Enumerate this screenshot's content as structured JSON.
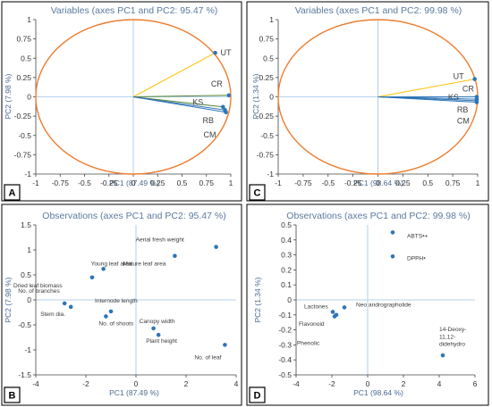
{
  "colors": {
    "circle": "#ed7d31",
    "ut_arrow": "#ffc000",
    "green_arrows": "#548235",
    "blue_arrows": "#2e75b6",
    "point": "#2e75b6",
    "zero_line": "#9dc3e6",
    "panel_border": "#000000"
  },
  "chart_data": [
    {
      "panel": "A",
      "type": "scatter",
      "subtype": "correlation-circle",
      "title": "Variables (axes PC1 and PC2: 95.47 %)",
      "xlabel": "PC1 (87.49 %)",
      "ylabel": "PC2 (7.98 %)",
      "xlim": [
        -1,
        1
      ],
      "ylim": [
        -1,
        1
      ],
      "xticks": [
        "-1",
        "-0.75",
        "-0.5",
        "-0.25",
        "0",
        "0.25",
        "0.5",
        "0.75",
        "1"
      ],
      "yticks": [
        "1",
        "0.75",
        "0.5",
        "0.25",
        "0",
        "-0.25",
        "-0.5",
        "-0.75",
        "-1"
      ],
      "grid": false,
      "points": [
        {
          "label": "UT",
          "x": 0.84,
          "y": 0.57
        },
        {
          "label": "CR",
          "x": 0.98,
          "y": 0.02
        },
        {
          "label": "KS",
          "x": 0.92,
          "y": -0.13
        },
        {
          "label": "RB",
          "x": 0.94,
          "y": -0.17
        },
        {
          "label": "CM",
          "x": 0.95,
          "y": -0.2
        }
      ]
    },
    {
      "panel": "C",
      "type": "scatter",
      "subtype": "correlation-circle",
      "title": "Variables (axes PC1 and PC2: 99.98 %)",
      "xlabel": "PC1 (98.64 %)",
      "ylabel": "PC2 (1.34 %)",
      "xlim": [
        -1,
        1
      ],
      "ylim": [
        -1,
        1
      ],
      "xticks": [
        "-1",
        "-0.75",
        "-0.5",
        "-0.25",
        "0",
        "0.25",
        "0.5",
        "0.75",
        "1"
      ],
      "yticks": [
        "1",
        "0.75",
        "0.5",
        "0.25",
        "0",
        "-0.25",
        "-0.5",
        "-0.75",
        "-1"
      ],
      "grid": false,
      "points": [
        {
          "label": "UT",
          "x": 0.97,
          "y": 0.23
        },
        {
          "label": "CR",
          "x": 0.99,
          "y": 0.0
        },
        {
          "label": "KS",
          "x": 0.99,
          "y": -0.03
        },
        {
          "label": "RB",
          "x": 0.99,
          "y": -0.05
        },
        {
          "label": "CM",
          "x": 0.99,
          "y": -0.07
        }
      ]
    },
    {
      "panel": "B",
      "type": "scatter",
      "title": "Observations (axes PC1 and PC2: 95.47 %)",
      "xlabel": "PC1 (87.49 %)",
      "ylabel": "PC2 (7.98 %)",
      "xlim": [
        -4,
        4
      ],
      "ylim": [
        -1.5,
        1.5
      ],
      "xticks": [
        "-4",
        "-2",
        "0",
        "2",
        "4"
      ],
      "yticks": [
        "1.5",
        "1",
        "0.5",
        "0",
        "-0.5",
        "-1",
        "-1.5"
      ],
      "grid": false,
      "points": [
        {
          "label": "Aerial fresh weight",
          "x": 3.2,
          "y": 1.06
        },
        {
          "label": "Mature leaf area",
          "x": 1.55,
          "y": 0.88
        },
        {
          "label": "Young leaf area",
          "x": -1.3,
          "y": 0.62
        },
        {
          "label": "Dried leaf biomass",
          "x": -1.75,
          "y": 0.45
        },
        {
          "label": "No. of branches",
          "x": -2.85,
          "y": -0.07
        },
        {
          "label": "Internode length",
          "x": -1.0,
          "y": -0.23
        },
        {
          "label": "Stem dia.",
          "x": -2.6,
          "y": -0.14
        },
        {
          "label": "No. of shoots",
          "x": -1.2,
          "y": -0.33
        },
        {
          "label": "Canopy width",
          "x": 0.7,
          "y": -0.57
        },
        {
          "label": "Plant height",
          "x": 0.9,
          "y": -0.7
        },
        {
          "label": "No. of leaf",
          "x": 3.55,
          "y": -0.9
        }
      ]
    },
    {
      "panel": "D",
      "type": "scatter",
      "title": "Observations (axes PC1 and PC2: 99.98 %)",
      "xlabel": "PC1 (98.64 %)",
      "ylabel": "PC2 (1.34 %)",
      "xlim": [
        -4,
        6
      ],
      "ylim": [
        -0.5,
        0.5
      ],
      "xticks": [
        "-4",
        "-2",
        "0",
        "2",
        "4",
        "6"
      ],
      "yticks": [
        "0.5",
        "0.4",
        "0.3",
        "0.2",
        "0.1",
        "0",
        "-0.1",
        "-0.2",
        "-0.3",
        "-0.4",
        "-0.5"
      ],
      "grid": false,
      "points": [
        {
          "label": "ABTS•+",
          "x": 1.4,
          "y": 0.45
        },
        {
          "label": "DPPH•",
          "x": 1.4,
          "y": 0.29
        },
        {
          "label": "Lactones",
          "x": -1.95,
          "y": -0.08
        },
        {
          "label": "Flavonoid",
          "x": -1.75,
          "y": -0.1
        },
        {
          "label": "Neo andrographolide",
          "x": -1.3,
          "y": -0.05
        },
        {
          "label": "Phenolic",
          "x": -1.85,
          "y": -0.11
        },
        {
          "label": "14-Deoxy-\n11,12-\ndidehydro",
          "x": 4.2,
          "y": -0.37
        }
      ]
    }
  ]
}
